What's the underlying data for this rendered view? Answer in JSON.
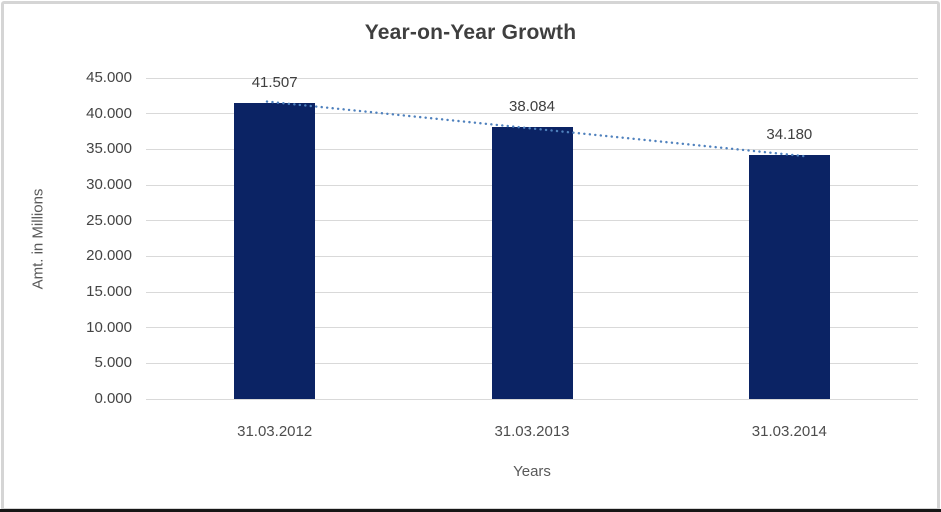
{
  "chart_data": {
    "type": "bar",
    "title": "Year-on-Year Growth",
    "xlabel": "Years",
    "ylabel": "Amt. in Millions",
    "categories": [
      "31.03.2012",
      "31.03.2013",
      "31.03.2014"
    ],
    "values": [
      41507,
      38084,
      34180
    ],
    "data_labels": [
      "41.507",
      "38.084",
      "34.180"
    ],
    "y_ticks": [
      {
        "value": 45000,
        "label": "45.000"
      },
      {
        "value": 40000,
        "label": "40.000"
      },
      {
        "value": 35000,
        "label": "35.000"
      },
      {
        "value": 30000,
        "label": "30.000"
      },
      {
        "value": 25000,
        "label": "25.000"
      },
      {
        "value": 20000,
        "label": "20.000"
      },
      {
        "value": 15000,
        "label": "15.000"
      },
      {
        "value": 10000,
        "label": "10.000"
      },
      {
        "value": 5000,
        "label": "5.000"
      },
      {
        "value": 0,
        "label": "0.000"
      }
    ],
    "ylim": [
      0,
      45000
    ],
    "grid": true,
    "legend": false,
    "trendline": "linear-dotted",
    "colors": {
      "bar": "#0b2364",
      "trendline": "#4f81bd",
      "gridline": "#d9d9d9",
      "title_text": "#3f3f3f",
      "tick_text": "#444444",
      "axis_title_text": "#595959",
      "frame_border": "#d5d5d5"
    }
  }
}
